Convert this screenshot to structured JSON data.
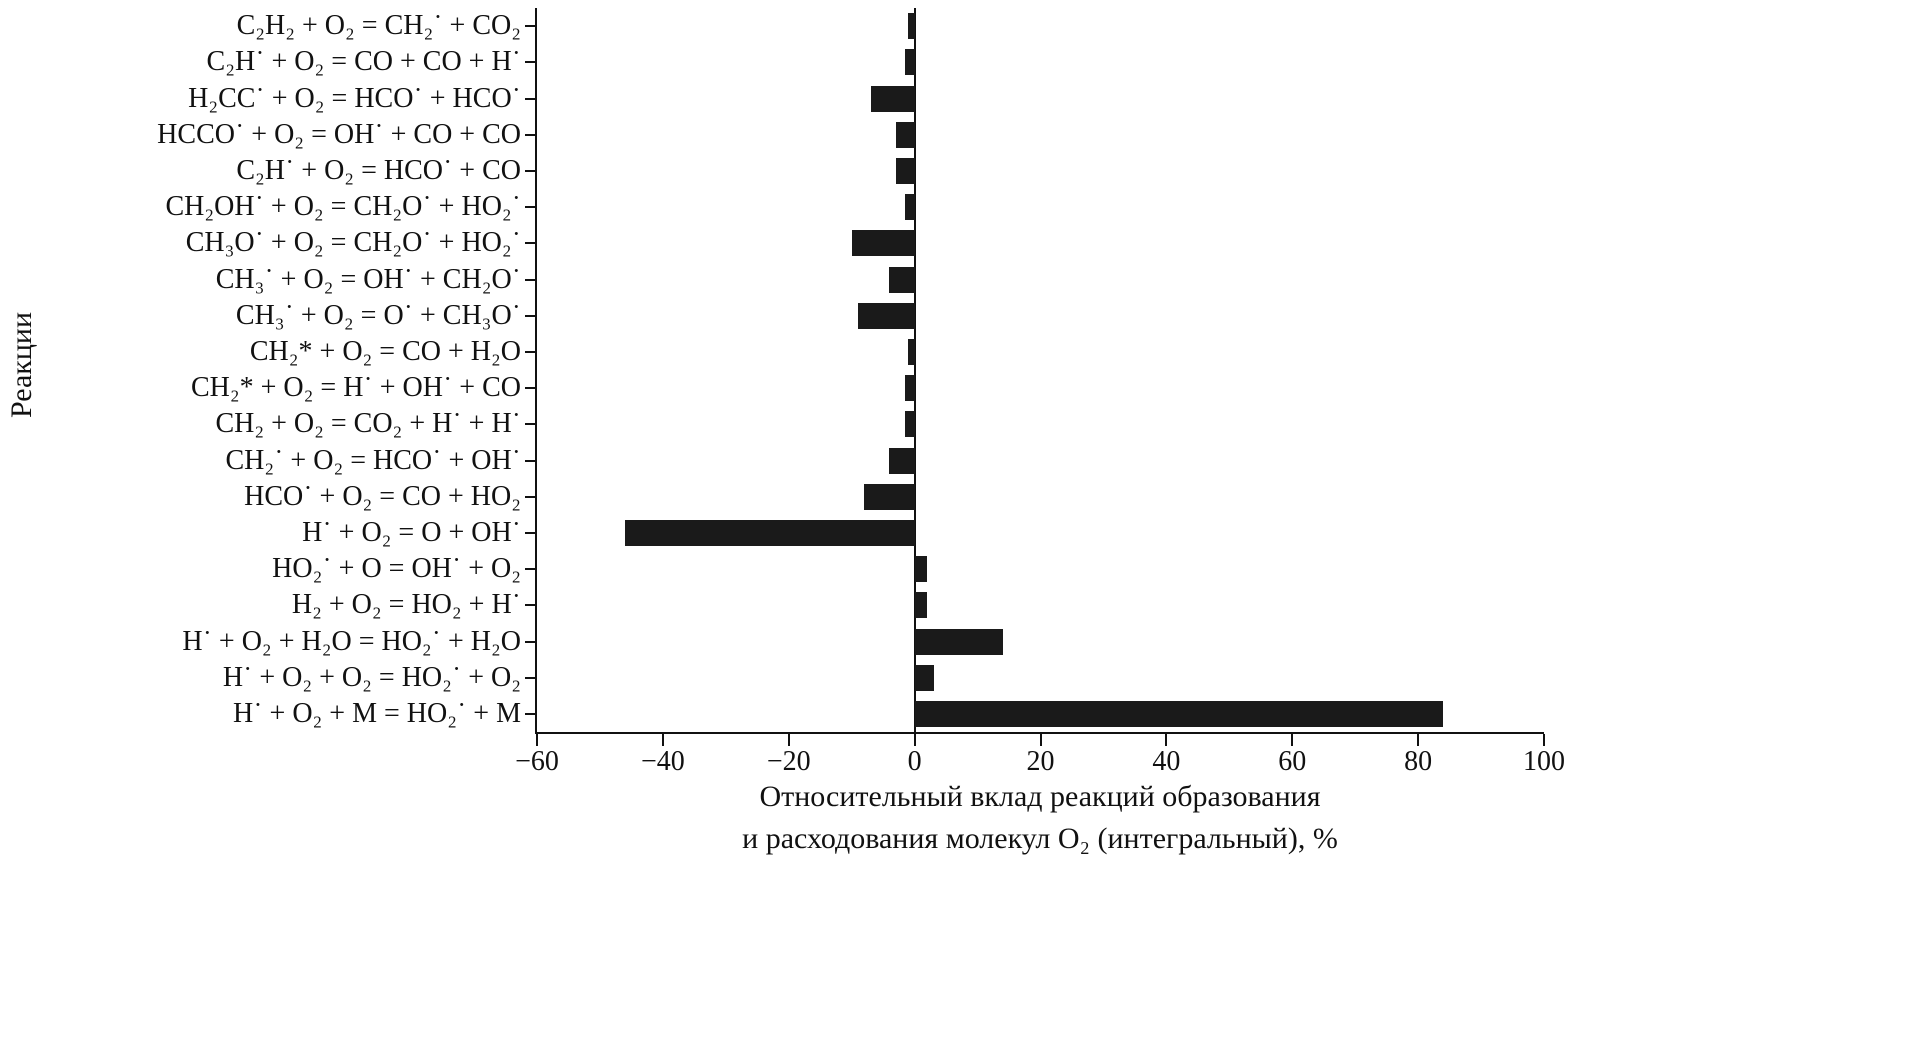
{
  "chart_data": {
    "type": "bar",
    "orientation": "horizontal",
    "bar_color": "#1a1a1a",
    "ylabel": "Реакции",
    "xlabel_line1": "Относительный вклад реакций образования",
    "xlabel_line2": "и расходования молекул O₂ (интегральный), %",
    "xlim": [
      -60,
      100
    ],
    "xticks": [
      -60,
      -40,
      -20,
      0,
      20,
      40,
      60,
      80,
      100
    ],
    "xtick_labels": [
      "−60",
      "−40",
      "−20",
      "0",
      "20",
      "40",
      "60",
      "80",
      "100"
    ],
    "grid": false,
    "legend": "none",
    "categories": [
      "C₂H₂ + O₂ = CH₂˙ + CO₂",
      "C₂H˙ + O₂ = CO + CO + H˙",
      "H₂CC˙ + O₂ = HCO˙ + HCO˙",
      "HCCO˙ + O₂ = OH˙ + CO + CO",
      "C₂H˙ + O₂ = HCO˙ + CO",
      "CH₂OH˙ + O₂ = CH₂O˙ + HO₂˙",
      "CH₃O˙ + O₂ = CH₂O˙ + HO₂˙",
      "CH₃˙ + O₂ = OH˙ + CH₂O˙",
      "CH₃˙ + O₂ = O˙ + CH₃O˙",
      "CH₂* + O₂ = CO + H₂O",
      "CH₂* + O₂ = H˙ + OH˙ + CO",
      "CH₂ + O₂ = CO₂ + H˙ + H˙",
      "CH₂˙ + O₂ = HCO˙ + OH˙",
      "HCO˙ + O₂ = CO + HO₂",
      "H˙ + O₂ = O + OH˙",
      "HO₂˙ + O = OH˙ + O₂",
      "H₂ + O₂ = HO₂ + H˙",
      "H˙ + O₂ + H₂O = HO₂˙ + H₂O",
      "H˙ + O₂ + O₂ = HO₂˙ + O₂",
      "H˙ + O₂ + M = HO₂˙ + M"
    ],
    "values": [
      -1,
      -1.5,
      -7,
      -3,
      -3,
      -1.5,
      -10,
      -4,
      -9,
      -1,
      -1.5,
      -1.5,
      -4,
      -8,
      -46,
      2,
      2,
      14,
      3,
      84
    ]
  }
}
